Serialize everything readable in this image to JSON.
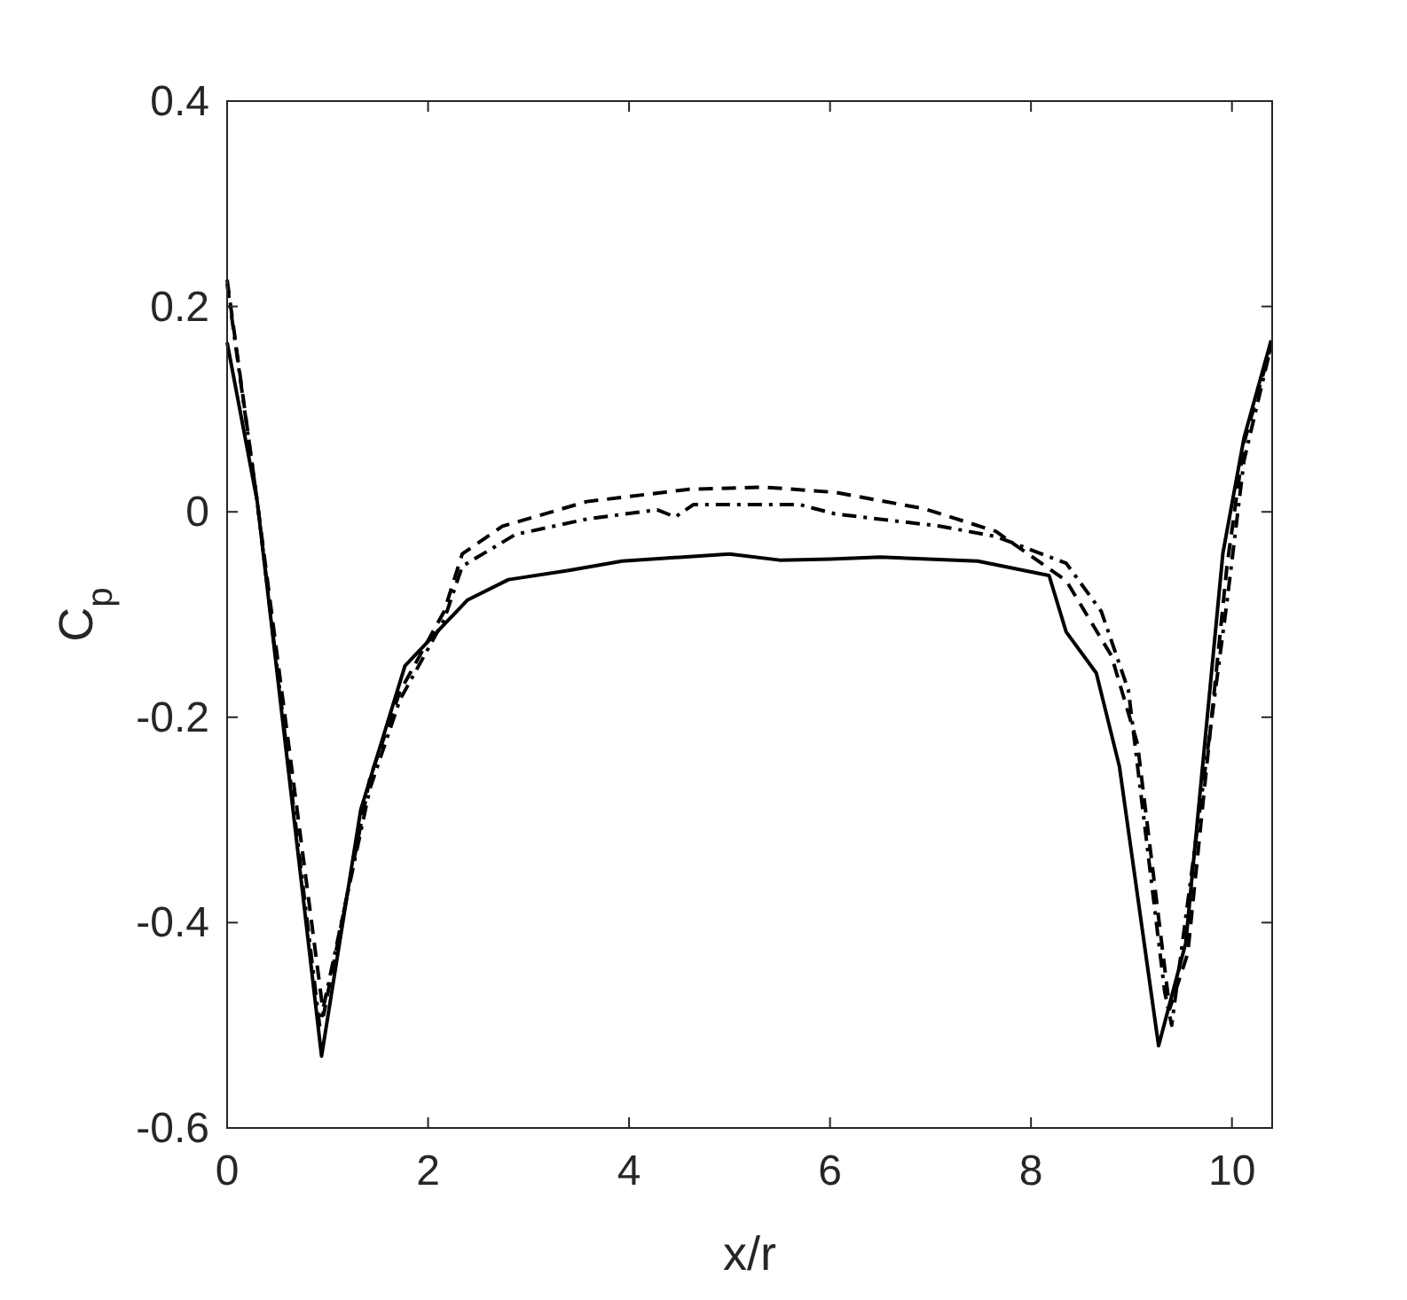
{
  "chart_data": {
    "type": "line",
    "xlabel": "x/r",
    "ylabel": "C$_{p}$",
    "xlim": [
      0,
      10.4
    ],
    "ylim": [
      -0.6,
      0.4
    ],
    "xticks": [
      0,
      2,
      4,
      6,
      8,
      10
    ],
    "yticks": [
      0.4,
      0.2,
      0,
      -0.2,
      -0.4,
      -0.6
    ],
    "grid": false,
    "marker": "none",
    "series": [
      {
        "color": "#000000",
        "line_style": "solid",
        "x": [
          0,
          0.3,
          0.94,
          1.33,
          1.77,
          2.39,
          2.8,
          3.4,
          3.93,
          5.0,
          5.5,
          6.0,
          6.5,
          7.47,
          8.18,
          8.35,
          8.65,
          8.88,
          9.27,
          9.54,
          9.91,
          10.12,
          10.39
        ],
        "values": [
          0.165,
          0.01,
          -0.53,
          -0.29,
          -0.15,
          -0.086,
          -0.066,
          -0.057,
          -0.048,
          -0.041,
          -0.047,
          -0.046,
          -0.044,
          -0.048,
          -0.062,
          -0.117,
          -0.157,
          -0.248,
          -0.52,
          -0.42,
          -0.04,
          0.072,
          0.167
        ]
      },
      {
        "color": "#000000",
        "line_style": "dashed",
        "x": [
          0,
          0.3,
          0.96,
          1.42,
          1.72,
          2.16,
          2.34,
          2.74,
          3.58,
          4.6,
          5.35,
          6.05,
          6.94,
          7.65,
          8.35,
          8.8,
          9.06,
          9.38,
          9.56,
          9.95,
          10.12,
          10.39
        ],
        "values": [
          0.226,
          0.01,
          -0.49,
          -0.26,
          -0.175,
          -0.097,
          -0.041,
          -0.014,
          0.01,
          0.022,
          0.024,
          0.019,
          0.003,
          -0.019,
          -0.067,
          -0.14,
          -0.226,
          -0.484,
          -0.43,
          -0.053,
          0.067,
          0.162
        ]
      },
      {
        "color": "#000000",
        "line_style": "dashdot",
        "x": [
          0,
          0.3,
          0.92,
          1.42,
          1.72,
          2.16,
          2.34,
          2.87,
          3.58,
          4.28,
          4.46,
          4.64,
          5.7,
          6.05,
          7.1,
          7.65,
          8.35,
          8.7,
          8.97,
          9.33,
          9.4,
          9.95,
          10.12,
          10.39
        ],
        "values": [
          0.222,
          0.01,
          -0.5,
          -0.27,
          -0.183,
          -0.105,
          -0.053,
          -0.022,
          -0.007,
          0.002,
          -0.005,
          0.007,
          0.007,
          -0.002,
          -0.014,
          -0.024,
          -0.05,
          -0.097,
          -0.174,
          -0.467,
          -0.5,
          -0.088,
          0.05,
          0.162
        ]
      }
    ]
  }
}
